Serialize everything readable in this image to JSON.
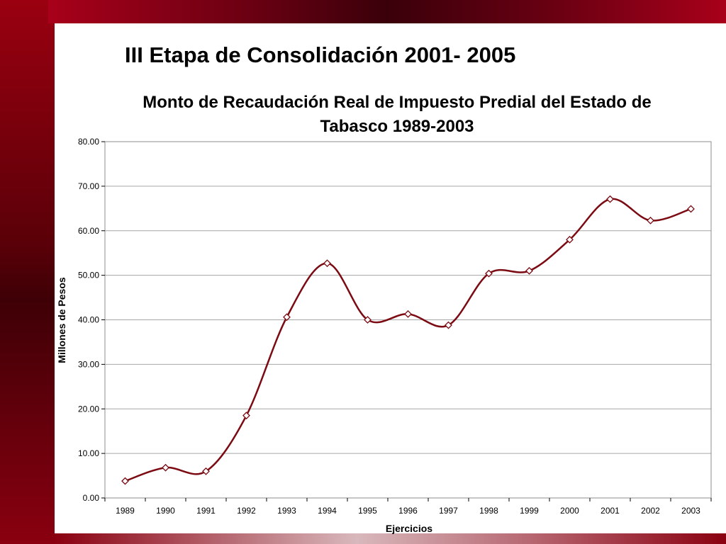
{
  "slide": {
    "title": "III Etapa de Consolidación 2001- 2005"
  },
  "colors": {
    "series": "#7b0a12",
    "grid": "#a6a6a6",
    "band_dark": "#3e0006",
    "band_red": "#9a0010"
  },
  "chart_data": {
    "type": "line",
    "title_lines": [
      "Monto de Recaudación Real de Impuesto Predial del Estado de",
      "Tabasco 1989-2003"
    ],
    "xlabel": "Ejercicios",
    "ylabel": "Millones de Pesos",
    "ylim": [
      0,
      80
    ],
    "yticks": [
      "0.00",
      "10.00",
      "20.00",
      "30.00",
      "40.00",
      "50.00",
      "60.00",
      "70.00",
      "80.00"
    ],
    "categories": [
      "1989",
      "1990",
      "1991",
      "1992",
      "1993",
      "1994",
      "1995",
      "1996",
      "1997",
      "1998",
      "1999",
      "2000",
      "2001",
      "2002",
      "2003"
    ],
    "series": [
      {
        "values": [
          3.8,
          6.8,
          6.0,
          18.5,
          40.6,
          52.7,
          40.0,
          41.3,
          38.8,
          50.4,
          51.0,
          58.0,
          67.1,
          62.3,
          64.9
        ],
        "marker": "diamond",
        "smooth": true
      }
    ],
    "grid": true,
    "legend": "none"
  }
}
